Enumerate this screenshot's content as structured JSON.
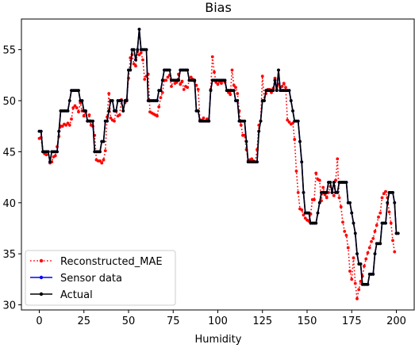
{
  "chart_data": {
    "type": "line",
    "title": "Bias",
    "xlabel": "Humidity",
    "ylabel": "",
    "xlim": [
      -10,
      210
    ],
    "ylim": [
      29.5,
      58
    ],
    "xticks": [
      0,
      25,
      50,
      75,
      100,
      125,
      150,
      175,
      200
    ],
    "yticks": [
      30,
      35,
      40,
      45,
      50,
      55
    ],
    "grid": false,
    "legend_position": "lower-left",
    "series": [
      {
        "name": "Reconstructed_MAE",
        "color": "#ff0000",
        "line_style": "dotted",
        "marker": "circle",
        "values": [
          46.3,
          46.4,
          45.0,
          44.8,
          44.7,
          45.0,
          43.9,
          44.0,
          44.5,
          44.6,
          45.5,
          46.5,
          47.5,
          47.5,
          47.7,
          47.6,
          47.8,
          47.6,
          48.2,
          49.3,
          49.5,
          49.3,
          48.9,
          49.8,
          49.0,
          48.5,
          48.9,
          48.0,
          48.6,
          47.6,
          47.5,
          46.6,
          44.2,
          44.1,
          44.1,
          43.9,
          44.2,
          45.1,
          48.4,
          50.7,
          48.3,
          48.1,
          48.0,
          49.0,
          48.5,
          48.6,
          50.1,
          49.0,
          49.8,
          50.1,
          52.2,
          54.2,
          54.5,
          53.6,
          53.4,
          54.8,
          54.5,
          54.7,
          54.0,
          52.1,
          52.4,
          52.6,
          48.9,
          48.8,
          48.7,
          48.6,
          48.5,
          49.4,
          50.3,
          50.8,
          52.0,
          52.0,
          52.3,
          52.5,
          51.4,
          52.0,
          51.7,
          51.8,
          52.6,
          51.6,
          51.9,
          51.1,
          51.4,
          51.3,
          52.0,
          52.3,
          52.1,
          51.9,
          51.5,
          51.1,
          48.1,
          48.1,
          48.3,
          48.0,
          48.2,
          48.0,
          51.1,
          54.3,
          52.8,
          51.8,
          51.6,
          51.9,
          51.7,
          52.0,
          51.8,
          51.0,
          50.8,
          50.6,
          53.0,
          51.5,
          51.3,
          50.7,
          49.0,
          47.6,
          46.6,
          46.6,
          45.2,
          44.1,
          44.2,
          44.3,
          44.1,
          44.0,
          45.2,
          47.6,
          48.0,
          52.4,
          50.0,
          50.7,
          51.1,
          51.1,
          50.8,
          51.2,
          52.2,
          51.1,
          51.6,
          51.3,
          51.4,
          51.7,
          51.3,
          48.1,
          47.9,
          47.7,
          47.8,
          46.2,
          43.1,
          41.0,
          39.4,
          39.3,
          38.8,
          38.5,
          38.3,
          38.2,
          38.9,
          40.3,
          40.3,
          42.9,
          42.3,
          42.2,
          40.2,
          41.5,
          40.8,
          40.5,
          41.0,
          41.6,
          41.0,
          40.7,
          42.2,
          44.3,
          40.5,
          39.6,
          38.1,
          37.2,
          36.8,
          35.6,
          33.3,
          32.5,
          34.6,
          32.1,
          30.6,
          31.5,
          32.3,
          32.8,
          33.8,
          34.5,
          35.1,
          35.6,
          36.2,
          36.5,
          37.2,
          37.8,
          38.6,
          39.0,
          40.5,
          40.9,
          41.1,
          40.5,
          39.1,
          38.0,
          36.3,
          35.2
        ]
      },
      {
        "name": "Sensor data",
        "color": "#0000ff",
        "line_style": "solid",
        "marker": "circle",
        "values": [
          47,
          47,
          45,
          45,
          45,
          45,
          44,
          45,
          45,
          45,
          45,
          47,
          49,
          49,
          49,
          49,
          49,
          50,
          51,
          51,
          51,
          51,
          51,
          50,
          50,
          49,
          49,
          48,
          48,
          48,
          48,
          45,
          45,
          45,
          45,
          46,
          46,
          48,
          48,
          49,
          50,
          50,
          49,
          49,
          50,
          50,
          50,
          49,
          50,
          50,
          53,
          53,
          55,
          55,
          54,
          55,
          57,
          55,
          55,
          55,
          55,
          50,
          50,
          50,
          50,
          50,
          50,
          51,
          51,
          52,
          53,
          53,
          53,
          53,
          52,
          52,
          52,
          52,
          52,
          53,
          53,
          53,
          53,
          53,
          52,
          52,
          52,
          52,
          49,
          49,
          48,
          48,
          48,
          48,
          48,
          48,
          51,
          52,
          52,
          52,
          52,
          52,
          52,
          52,
          52,
          51,
          51,
          51,
          51,
          51,
          50,
          50,
          48,
          48,
          48,
          48,
          46,
          44,
          44,
          44,
          44,
          44,
          44,
          47,
          48,
          50,
          50,
          51,
          51,
          51,
          51,
          51,
          52,
          51,
          53,
          51,
          51,
          51,
          51,
          51,
          51,
          50,
          49,
          48,
          48,
          48,
          46,
          44,
          41,
          39,
          39,
          39,
          38,
          38,
          38,
          38,
          39,
          40,
          41,
          41,
          41,
          41,
          42,
          42,
          41,
          42,
          41,
          41,
          42,
          42,
          42,
          42,
          42,
          40,
          40,
          39,
          38,
          37,
          35,
          34,
          34,
          32,
          32,
          32,
          32,
          33,
          33,
          33,
          35,
          36,
          36,
          36,
          38,
          38,
          38,
          40,
          41,
          41,
          41,
          40,
          37,
          37
        ]
      },
      {
        "name": "Actual",
        "color": "#000000",
        "line_style": "solid",
        "marker": "circle",
        "values": [
          47,
          47,
          45,
          45,
          45,
          45,
          44,
          45,
          45,
          45,
          45,
          47,
          49,
          49,
          49,
          49,
          49,
          50,
          51,
          51,
          51,
          51,
          51,
          50,
          50,
          49,
          49,
          48,
          48,
          48,
          48,
          45,
          45,
          45,
          45,
          46,
          46,
          48,
          48,
          49,
          50,
          50,
          49,
          49,
          50,
          50,
          50,
          49,
          50,
          50,
          53,
          53,
          55,
          55,
          54,
          55,
          57,
          55,
          55,
          55,
          55,
          50,
          50,
          50,
          50,
          50,
          50,
          51,
          51,
          52,
          53,
          53,
          53,
          53,
          52,
          52,
          52,
          52,
          52,
          53,
          53,
          53,
          53,
          53,
          52,
          52,
          52,
          52,
          49,
          49,
          48,
          48,
          48,
          48,
          48,
          48,
          51,
          52,
          52,
          52,
          52,
          52,
          52,
          52,
          52,
          51,
          51,
          51,
          51,
          51,
          50,
          50,
          48,
          48,
          48,
          48,
          46,
          44,
          44,
          44,
          44,
          44,
          44,
          47,
          48,
          50,
          50,
          51,
          51,
          51,
          51,
          51,
          52,
          51,
          53,
          51,
          51,
          51,
          51,
          51,
          51,
          50,
          49,
          48,
          48,
          48,
          46,
          44,
          41,
          39,
          39,
          39,
          38,
          38,
          38,
          38,
          39,
          40,
          41,
          41,
          41,
          41,
          42,
          42,
          41,
          42,
          41,
          41,
          42,
          42,
          42,
          42,
          42,
          40,
          40,
          39,
          38,
          37,
          35,
          34,
          34,
          32,
          32,
          32,
          32,
          33,
          33,
          33,
          35,
          36,
          36,
          36,
          38,
          38,
          38,
          40,
          41,
          41,
          41,
          40,
          37,
          37
        ]
      }
    ]
  }
}
